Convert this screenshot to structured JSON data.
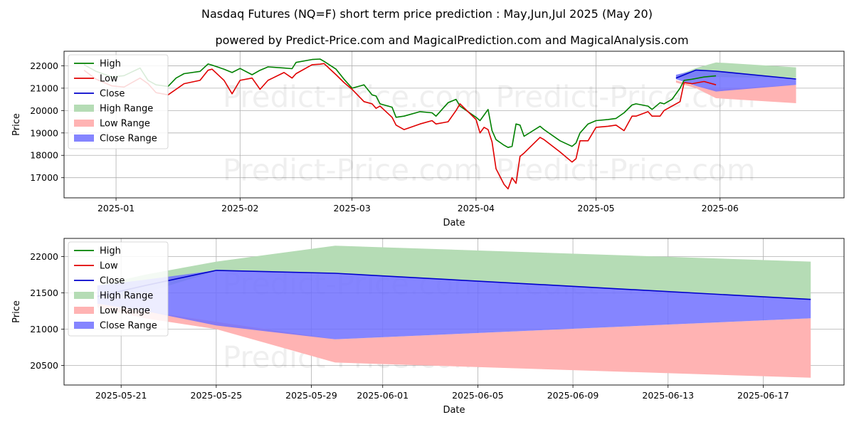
{
  "title": "Nasdaq Futures (NQ=F) short term price prediction : May,Jun,Jul 2025 (May 20)",
  "subtitle": "powered by Predict-Price.com and MagicalPrediction.com and MagicalAnalysis.com",
  "watermark": "Predict-Price.com",
  "colors": {
    "high": "#008000",
    "low": "#e00000",
    "close": "#0000cc",
    "high_range": "#b5dcb5",
    "low_range": "#ffb3b3",
    "close_range": "#7070ff",
    "grid": "#b0b0b0"
  },
  "legend": [
    "High",
    "Low",
    "Close",
    "High Range",
    "Low Range",
    "Close Range"
  ],
  "chart_data": [
    {
      "type": "line",
      "name": "history",
      "xlabel": "Date",
      "ylabel": "Price",
      "x_ticks": [
        "2025-01",
        "2025-02",
        "2025-03",
        "2025-04",
        "2025-05",
        "2025-06"
      ],
      "y_ticks": [
        17000,
        18000,
        19000,
        20000,
        21000,
        22000
      ],
      "xlim": [
        "2024-12-18",
        "2025-07-01"
      ],
      "ylim": [
        16100,
        22650
      ],
      "grid": true,
      "legend_position": "top-left",
      "series": [
        {
          "name": "High",
          "points": [
            [
              "2024-12-23",
              22050
            ],
            [
              "2024-12-26",
              21750
            ],
            [
              "2024-12-30",
              21500
            ],
            [
              "2025-01-02",
              21560
            ],
            [
              "2025-01-06",
              21900
            ],
            [
              "2025-01-08",
              21350
            ],
            [
              "2025-01-10",
              21150
            ],
            [
              "2025-01-13",
              21080
            ],
            [
              "2025-01-15",
              21450
            ],
            [
              "2025-01-17",
              21650
            ],
            [
              "2025-01-21",
              21750
            ],
            [
              "2025-01-23",
              22080
            ],
            [
              "2025-01-24",
              22030
            ],
            [
              "2025-01-27",
              21850
            ],
            [
              "2025-01-29",
              21700
            ],
            [
              "2025-01-31",
              21880
            ],
            [
              "2025-02-03",
              21600
            ],
            [
              "2025-02-05",
              21800
            ],
            [
              "2025-02-07",
              21950
            ],
            [
              "2025-02-11",
              21900
            ],
            [
              "2025-02-13",
              21870
            ],
            [
              "2025-02-14",
              22150
            ],
            [
              "2025-02-18",
              22280
            ],
            [
              "2025-02-20",
              22300
            ],
            [
              "2025-02-21",
              22200
            ],
            [
              "2025-02-24",
              21850
            ],
            [
              "2025-02-26",
              21400
            ],
            [
              "2025-02-28",
              21000
            ],
            [
              "2025-03-03",
              21150
            ],
            [
              "2025-03-05",
              20700
            ],
            [
              "2025-03-06",
              20650
            ],
            [
              "2025-03-07",
              20300
            ],
            [
              "2025-03-10",
              20150
            ],
            [
              "2025-03-11",
              19700
            ],
            [
              "2025-03-13",
              19750
            ],
            [
              "2025-03-17",
              19950
            ],
            [
              "2025-03-20",
              19900
            ],
            [
              "2025-03-21",
              19750
            ],
            [
              "2025-03-24",
              20350
            ],
            [
              "2025-03-26",
              20500
            ],
            [
              "2025-03-27",
              20200
            ],
            [
              "2025-03-31",
              19700
            ],
            [
              "2025-04-01",
              19550
            ],
            [
              "2025-04-02",
              19800
            ],
            [
              "2025-04-03",
              20050
            ],
            [
              "2025-04-04",
              19100
            ],
            [
              "2025-04-05",
              18700
            ],
            [
              "2025-04-07",
              18450
            ],
            [
              "2025-04-08",
              18350
            ],
            [
              "2025-04-09",
              18400
            ],
            [
              "2025-04-10",
              19400
            ],
            [
              "2025-04-11",
              19350
            ],
            [
              "2025-04-12",
              18850
            ],
            [
              "2025-04-16",
              19300
            ],
            [
              "2025-04-17",
              19150
            ],
            [
              "2025-04-21",
              18650
            ],
            [
              "2025-04-24",
              18400
            ],
            [
              "2025-04-25",
              18550
            ],
            [
              "2025-04-26",
              19000
            ],
            [
              "2025-04-28",
              19400
            ],
            [
              "2025-04-30",
              19550
            ],
            [
              "2025-05-03",
              19600
            ],
            [
              "2025-05-05",
              19650
            ],
            [
              "2025-05-07",
              19900
            ],
            [
              "2025-05-09",
              20250
            ],
            [
              "2025-05-10",
              20300
            ],
            [
              "2025-05-13",
              20200
            ],
            [
              "2025-05-14",
              20050
            ],
            [
              "2025-05-16",
              20350
            ],
            [
              "2025-05-17",
              20300
            ],
            [
              "2025-05-19",
              20500
            ],
            [
              "2025-05-21",
              21000
            ],
            [
              "2025-05-22",
              21350
            ],
            [
              "2025-05-24",
              21400
            ],
            [
              "2025-05-27",
              21500
            ],
            [
              "2025-05-30",
              21550
            ]
          ]
        },
        {
          "name": "Low",
          "points": [
            [
              "2024-12-23",
              21800
            ],
            [
              "2024-12-26",
              21400
            ],
            [
              "2024-12-30",
              21100
            ],
            [
              "2025-01-02",
              21050
            ],
            [
              "2025-01-06",
              21450
            ],
            [
              "2025-01-08",
              21200
            ],
            [
              "2025-01-10",
              20800
            ],
            [
              "2025-01-13",
              20700
            ],
            [
              "2025-01-15",
              20950
            ],
            [
              "2025-01-17",
              21200
            ],
            [
              "2025-01-21",
              21350
            ],
            [
              "2025-01-23",
              21800
            ],
            [
              "2025-01-24",
              21850
            ],
            [
              "2025-01-27",
              21350
            ],
            [
              "2025-01-29",
              20750
            ],
            [
              "2025-01-31",
              21350
            ],
            [
              "2025-02-03",
              21450
            ],
            [
              "2025-02-05",
              20950
            ],
            [
              "2025-02-07",
              21350
            ],
            [
              "2025-02-11",
              21700
            ],
            [
              "2025-02-13",
              21450
            ],
            [
              "2025-02-14",
              21650
            ],
            [
              "2025-02-18",
              22050
            ],
            [
              "2025-02-20",
              22070
            ],
            [
              "2025-02-21",
              22100
            ],
            [
              "2025-02-24",
              21600
            ],
            [
              "2025-02-26",
              21250
            ],
            [
              "2025-02-28",
              20950
            ],
            [
              "2025-03-03",
              20400
            ],
            [
              "2025-03-05",
              20300
            ],
            [
              "2025-03-06",
              20100
            ],
            [
              "2025-03-07",
              20200
            ],
            [
              "2025-03-10",
              19700
            ],
            [
              "2025-03-11",
              19350
            ],
            [
              "2025-03-13",
              19150
            ],
            [
              "2025-03-17",
              19400
            ],
            [
              "2025-03-20",
              19550
            ],
            [
              "2025-03-21",
              19400
            ],
            [
              "2025-03-24",
              19500
            ],
            [
              "2025-03-26",
              20000
            ],
            [
              "2025-03-27",
              20300
            ],
            [
              "2025-03-31",
              19600
            ],
            [
              "2025-04-01",
              19000
            ],
            [
              "2025-04-02",
              19250
            ],
            [
              "2025-04-03",
              19150
            ],
            [
              "2025-04-04",
              18600
            ],
            [
              "2025-04-05",
              17400
            ],
            [
              "2025-04-07",
              16700
            ],
            [
              "2025-04-08",
              16500
            ],
            [
              "2025-04-09",
              17000
            ],
            [
              "2025-04-10",
              16750
            ],
            [
              "2025-04-11",
              17950
            ],
            [
              "2025-04-12",
              18100
            ],
            [
              "2025-04-16",
              18800
            ],
            [
              "2025-04-17",
              18700
            ],
            [
              "2025-04-21",
              18150
            ],
            [
              "2025-04-24",
              17700
            ],
            [
              "2025-04-25",
              17850
            ],
            [
              "2025-04-26",
              18650
            ],
            [
              "2025-04-28",
              18650
            ],
            [
              "2025-04-30",
              19250
            ],
            [
              "2025-05-03",
              19300
            ],
            [
              "2025-05-05",
              19350
            ],
            [
              "2025-05-07",
              19100
            ],
            [
              "2025-05-09",
              19750
            ],
            [
              "2025-05-10",
              19750
            ],
            [
              "2025-05-13",
              19950
            ],
            [
              "2025-05-14",
              19750
            ],
            [
              "2025-05-16",
              19750
            ],
            [
              "2025-05-17",
              20000
            ],
            [
              "2025-05-19",
              20200
            ],
            [
              "2025-05-21",
              20400
            ],
            [
              "2025-05-22",
              21250
            ],
            [
              "2025-05-24",
              21200
            ],
            [
              "2025-05-27",
              21300
            ],
            [
              "2025-05-30",
              21150
            ]
          ]
        }
      ],
      "forecast": {
        "x": [
          "2025-05-20",
          "2025-05-25",
          "2025-05-30",
          "2025-06-19"
        ],
        "high_range": {
          "upper": [
            21550,
            21900,
            22150,
            21930
          ],
          "lower": [
            21450,
            21500,
            21500,
            21450
          ]
        },
        "low_range": {
          "upper": [
            21350,
            21100,
            20950,
            21150
          ],
          "lower": [
            21250,
            21000,
            20550,
            20330
          ]
        },
        "close_range": {
          "upper": [
            21600,
            21800,
            21750,
            21410
          ],
          "lower": [
            21400,
            21100,
            20850,
            21150
          ]
        },
        "close": [
          21450,
          21810,
          21760,
          21410
        ],
        "high": [
          21560
        ],
        "low": [
          21350
        ]
      }
    },
    {
      "type": "area",
      "name": "forecast-detail",
      "xlabel": "Date",
      "ylabel": "Price",
      "x_ticks": [
        "2025-05-21",
        "2025-05-25",
        "2025-05-29",
        "2025-06-01",
        "2025-06-05",
        "2025-06-09",
        "2025-06-13",
        "2025-06-17"
      ],
      "y_ticks": [
        20500,
        21000,
        21500,
        22000
      ],
      "xlim": [
        "2025-05-18.6",
        "2025-06-20.4"
      ],
      "ylim": [
        20230,
        22250
      ],
      "grid": true,
      "legend_position": "top-left",
      "x": [
        "2025-05-20",
        "2025-05-22",
        "2025-05-25",
        "2025-05-30",
        "2025-06-19"
      ],
      "series": [
        {
          "name": "High Range",
          "upper": [
            21600,
            21750,
            21930,
            22150,
            21930
          ],
          "lower": [
            21400,
            21500,
            21800,
            21770,
            21410
          ]
        },
        {
          "name": "Low Range",
          "upper": [
            21350,
            21250,
            21100,
            20860,
            21150
          ],
          "lower": [
            21300,
            21150,
            21000,
            20540,
            20330
          ]
        },
        {
          "name": "Close Range",
          "upper": [
            21600,
            21680,
            21810,
            21770,
            21410
          ],
          "lower": [
            21350,
            21250,
            21050,
            20860,
            21150
          ]
        },
        {
          "name": "Close",
          "values": [
            21450,
            21600,
            21810,
            21770,
            21410
          ]
        }
      ]
    }
  ]
}
